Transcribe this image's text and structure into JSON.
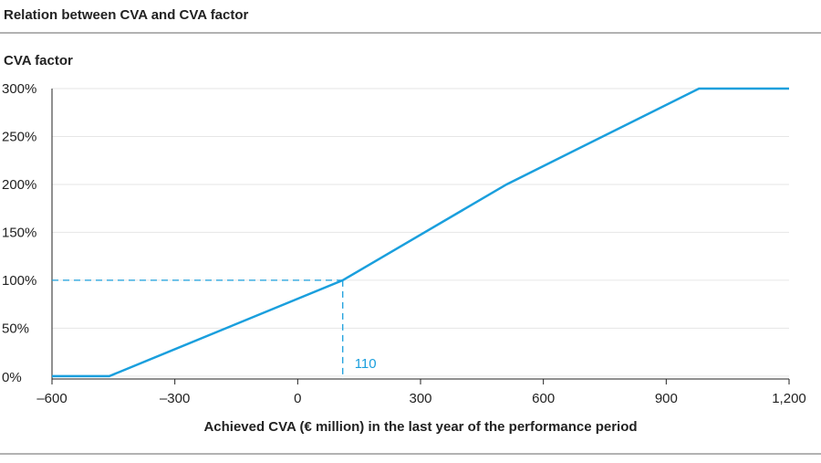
{
  "chart_data": {
    "type": "line",
    "title": "Relation between CVA and CVA factor",
    "y_label": "CVA factor",
    "x_label": "Achieved CVA (€ million) in the last year of the performance period",
    "series": [
      {
        "name": "CVA factor",
        "color": "#1a9fdd",
        "x": [
          -600,
          -460,
          110,
          510,
          980,
          1200
        ],
        "values": [
          0,
          0,
          100,
          200,
          300,
          300
        ]
      }
    ],
    "annotation": {
      "x": 110,
      "y": 100,
      "label": "110"
    },
    "xlim": [
      -600,
      1200
    ],
    "xticks": [
      {
        "value": -600,
        "label": "–600"
      },
      {
        "value": -300,
        "label": "–300"
      },
      0,
      300,
      600,
      900,
      {
        "value": 1200,
        "label": "1,200"
      }
    ],
    "ylim": [
      -3,
      300
    ],
    "yticks": [
      {
        "value": 0,
        "label": "0%"
      },
      {
        "value": 50,
        "label": "50%"
      },
      {
        "value": 100,
        "label": "100%"
      },
      {
        "value": 150,
        "label": "150%"
      },
      {
        "value": 200,
        "label": "200%"
      },
      {
        "value": 250,
        "label": "250%"
      },
      {
        "value": 300,
        "label": "300%"
      }
    ],
    "grid": true
  }
}
